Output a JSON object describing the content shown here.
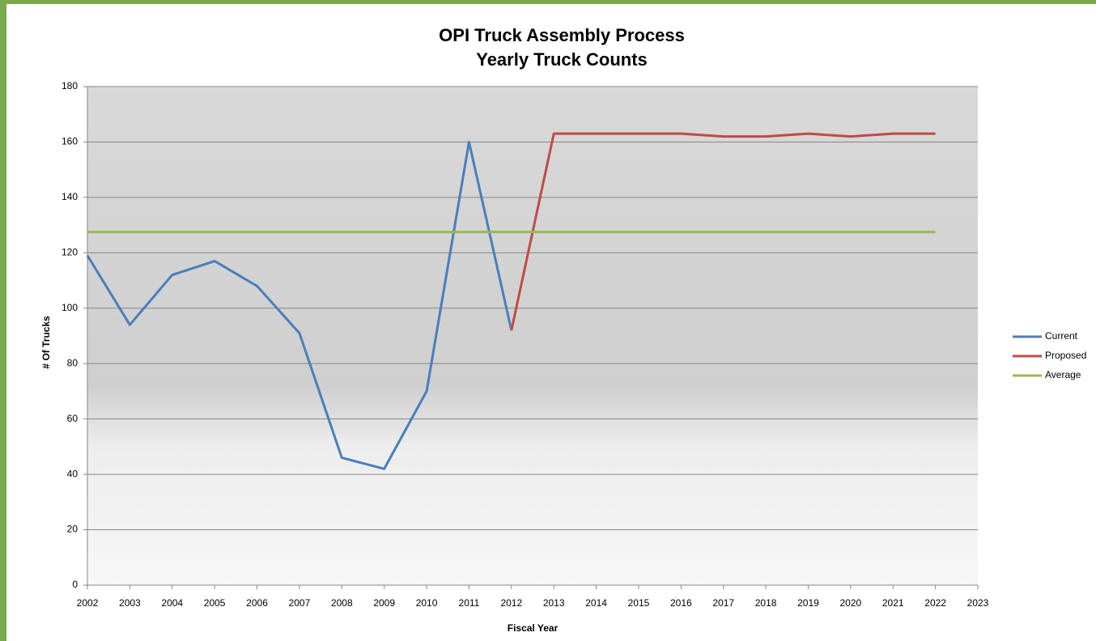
{
  "chart_data": {
    "type": "line",
    "title": "OPI Truck Assembly Process",
    "subtitle": "Yearly Truck Counts",
    "y_label": "# Of Trucks",
    "x_label": "Fiscal Year",
    "x": [
      2002,
      2003,
      2004,
      2005,
      2006,
      2007,
      2008,
      2009,
      2010,
      2011,
      2012,
      2013,
      2014,
      2015,
      2016,
      2017,
      2018,
      2019,
      2020,
      2021,
      2022
    ],
    "series": [
      {
        "name": "Current",
        "color": "#4a7ebb",
        "values": [
          119,
          94,
          112,
          117,
          108,
          91,
          46,
          42,
          70,
          160,
          92,
          null,
          null,
          null,
          null,
          null,
          null,
          null,
          null,
          null,
          null
        ]
      },
      {
        "name": "Proposed",
        "color": "#be4b48",
        "values": [
          null,
          null,
          null,
          null,
          null,
          null,
          null,
          null,
          null,
          null,
          92,
          163,
          163,
          163,
          163,
          162,
          162,
          163,
          162,
          163,
          163
        ]
      },
      {
        "name": "Average",
        "color": "#98b954",
        "values": [
          127.5,
          127.5,
          127.5,
          127.5,
          127.5,
          127.5,
          127.5,
          127.5,
          127.5,
          127.5,
          127.5,
          127.5,
          127.5,
          127.5,
          127.5,
          127.5,
          127.5,
          127.5,
          127.5,
          127.5,
          127.5
        ]
      }
    ],
    "xlim": [
      2002,
      2023
    ],
    "xticks": [
      2002,
      2003,
      2004,
      2005,
      2006,
      2007,
      2008,
      2009,
      2010,
      2011,
      2012,
      2013,
      2014,
      2015,
      2016,
      2017,
      2018,
      2019,
      2020,
      2021,
      2022,
      2023
    ],
    "ylim": [
      0,
      180
    ],
    "yticks": [
      0,
      20,
      40,
      60,
      80,
      100,
      120,
      140,
      160,
      180
    ],
    "grid": true,
    "legend": "right"
  }
}
